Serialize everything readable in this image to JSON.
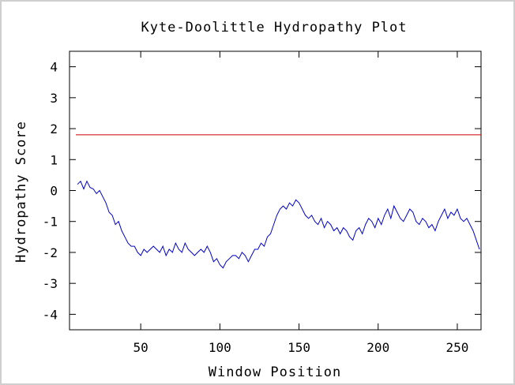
{
  "chart_data": {
    "type": "line",
    "title": "Kyte-Doolittle Hydropathy Plot",
    "xlabel": "Window Position",
    "ylabel": "Hydropathy Score",
    "xlim": [
      5,
      265
    ],
    "ylim": [
      -4.5,
      4.5
    ],
    "xticks": [
      50,
      100,
      150,
      200,
      250
    ],
    "yticks": [
      -4,
      -3,
      -2,
      -1,
      0,
      1,
      2,
      3,
      4
    ],
    "grid": false,
    "reference_line": {
      "y": 1.8,
      "color": "#cc0000"
    },
    "series": [
      {
        "color": "#0000cc",
        "x": [
          10,
          12,
          14,
          16,
          18,
          20,
          22,
          24,
          26,
          28,
          30,
          32,
          34,
          36,
          38,
          40,
          42,
          44,
          46,
          48,
          50,
          52,
          54,
          56,
          58,
          60,
          62,
          64,
          66,
          68,
          70,
          72,
          74,
          76,
          78,
          80,
          82,
          84,
          86,
          88,
          90,
          92,
          94,
          96,
          98,
          100,
          102,
          104,
          106,
          108,
          110,
          112,
          114,
          116,
          118,
          120,
          122,
          124,
          126,
          128,
          130,
          132,
          134,
          136,
          138,
          140,
          142,
          144,
          146,
          148,
          150,
          152,
          154,
          156,
          158,
          160,
          162,
          164,
          166,
          168,
          170,
          172,
          174,
          176,
          178,
          180,
          182,
          184,
          186,
          188,
          190,
          192,
          194,
          196,
          198,
          200,
          202,
          204,
          206,
          208,
          210,
          212,
          214,
          216,
          218,
          220,
          222,
          224,
          226,
          228,
          230,
          232,
          234,
          236,
          238,
          240,
          242,
          244,
          246,
          248,
          250,
          252,
          254,
          256,
          258,
          260,
          262,
          264
        ],
        "y": [
          0.2,
          0.3,
          0.05,
          0.3,
          0.1,
          0.05,
          -0.1,
          0.0,
          -0.2,
          -0.4,
          -0.7,
          -0.8,
          -1.1,
          -1.0,
          -1.3,
          -1.5,
          -1.7,
          -1.8,
          -1.8,
          -2.0,
          -2.1,
          -1.9,
          -2.0,
          -1.9,
          -1.8,
          -1.9,
          -2.0,
          -1.8,
          -2.1,
          -1.9,
          -2.0,
          -1.7,
          -1.9,
          -2.0,
          -1.7,
          -1.9,
          -2.0,
          -2.1,
          -2.0,
          -1.9,
          -2.0,
          -1.8,
          -2.0,
          -2.3,
          -2.2,
          -2.4,
          -2.5,
          -2.3,
          -2.2,
          -2.1,
          -2.1,
          -2.2,
          -2.0,
          -2.1,
          -2.3,
          -2.1,
          -1.9,
          -1.9,
          -1.7,
          -1.8,
          -1.5,
          -1.4,
          -1.1,
          -0.8,
          -0.6,
          -0.5,
          -0.6,
          -0.4,
          -0.5,
          -0.3,
          -0.4,
          -0.6,
          -0.8,
          -0.9,
          -0.8,
          -1.0,
          -1.1,
          -0.9,
          -1.2,
          -1.0,
          -1.1,
          -1.3,
          -1.2,
          -1.4,
          -1.2,
          -1.3,
          -1.5,
          -1.6,
          -1.3,
          -1.2,
          -1.4,
          -1.1,
          -0.9,
          -1.0,
          -1.2,
          -0.9,
          -1.1,
          -0.8,
          -0.6,
          -0.9,
          -0.5,
          -0.7,
          -0.9,
          -1.0,
          -0.8,
          -0.6,
          -0.7,
          -1.0,
          -1.1,
          -0.9,
          -1.0,
          -1.2,
          -1.1,
          -1.3,
          -1.0,
          -0.8,
          -0.6,
          -0.9,
          -0.7,
          -0.8,
          -0.6,
          -0.9,
          -1.0,
          -0.9,
          -1.1,
          -1.3,
          -1.6,
          -1.9
        ]
      }
    ]
  }
}
